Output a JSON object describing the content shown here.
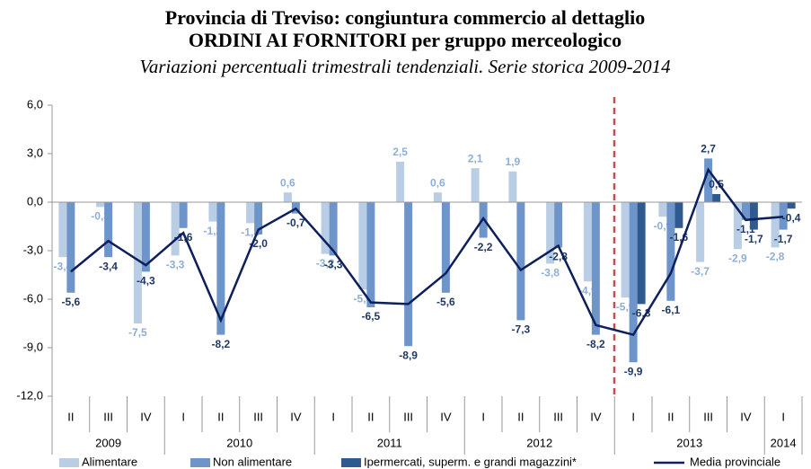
{
  "chart_data": {
    "type": "bar",
    "title": "Provincia di Treviso: congiuntura commercio al dettaglio",
    "title_line2": "ORDINI AI FORNITORI per gruppo merceologico",
    "subtitle": "Variazioni percentuali trimestrali tendenziali. Serie storica 2009-2014",
    "categories": [
      "II",
      "III",
      "IV",
      "I",
      "II",
      "III",
      "IV",
      "I",
      "II",
      "III",
      "IV",
      "I",
      "II",
      "III",
      "IV",
      "I",
      "II",
      "III",
      "IV",
      "I"
    ],
    "category_years": [
      "2009",
      "2009",
      "2009",
      "2010",
      "2010",
      "2010",
      "2010",
      "2011",
      "2011",
      "2011",
      "2011",
      "2012",
      "2012",
      "2012",
      "2012",
      "2013",
      "2013",
      "2013",
      "2013",
      "2014"
    ],
    "ylim": [
      -12,
      6
    ],
    "yticks": [
      {
        "value": -12,
        "label": "-12,0"
      },
      {
        "value": -9,
        "label": "-9,0"
      },
      {
        "value": -6,
        "label": "-6,0"
      },
      {
        "value": -3,
        "label": "-3,0"
      },
      {
        "value": 0,
        "label": "0,0"
      },
      {
        "value": 3,
        "label": "3,0"
      },
      {
        "value": 6,
        "label": "6,0"
      }
    ],
    "grid": false,
    "legend": "bottom",
    "series": [
      {
        "name": "Alimentare",
        "color": "#b9cde5",
        "values": [
          -3.4,
          -0.3,
          -7.5,
          -3.3,
          -1.2,
          -1.3,
          0.6,
          -3.2,
          -5.4,
          2.5,
          0.6,
          2.1,
          1.9,
          -3.8,
          -4.9,
          -5.9,
          -0.9,
          -3.7,
          -2.9,
          -2.8
        ],
        "value_labels": [
          "-3,4",
          "-0,3",
          "-7,5",
          "-3,3",
          "-1,2",
          "-1,3",
          "0,6",
          "-3,2",
          "-5,4",
          "2,5",
          "0,6",
          "2,1",
          "1,9",
          "-3,8",
          "-4,9",
          "-5,9",
          "-0,9",
          "-3,7",
          "-2,9",
          "-2,8"
        ]
      },
      {
        "name": "Non alimentare",
        "color": "#6d95c9",
        "values": [
          -5.6,
          -3.4,
          -4.3,
          -1.6,
          -8.2,
          -2.0,
          -0.7,
          -3.3,
          -6.5,
          -8.9,
          -5.6,
          -2.2,
          -7.3,
          -2.8,
          -8.2,
          -9.9,
          -6.1,
          2.7,
          -1.1,
          -1.7
        ],
        "value_labels": [
          "-5,6",
          "-3,4",
          "-4,3",
          "-1,6",
          "-8,2",
          "-2,0",
          "-0,7",
          "-3,3",
          "-6,5",
          "-8,9",
          "-5,6",
          "-2,2",
          "-7,3",
          "-2,8",
          "-8,2",
          "-9,9",
          "-6,1",
          "2,7",
          "-1,1",
          "-1,7"
        ]
      },
      {
        "name": "Ipermercati, superm. e grandi magazzini*",
        "color": "#2f5a8f",
        "values": [
          null,
          null,
          null,
          null,
          null,
          null,
          null,
          null,
          null,
          null,
          null,
          null,
          null,
          null,
          null,
          -6.3,
          -1.6,
          0.5,
          -1.7,
          -0.4
        ],
        "value_labels": [
          null,
          null,
          null,
          null,
          null,
          null,
          null,
          null,
          null,
          null,
          null,
          null,
          null,
          null,
          null,
          "-6,3",
          "-1,6",
          "0,5",
          "-1,7",
          "-0,4"
        ]
      },
      {
        "name": "Media provinciale",
        "color": "#0d1f5c",
        "type": "line",
        "values": [
          -4.3,
          -2.4,
          -3.9,
          -1.9,
          -7.3,
          -1.7,
          -0.4,
          -3.0,
          -6.2,
          -6.3,
          -4.4,
          -1.0,
          -4.2,
          -2.7,
          -7.6,
          -8.2,
          -4.4,
          2.0,
          -1.1,
          -0.9
        ]
      }
    ]
  }
}
